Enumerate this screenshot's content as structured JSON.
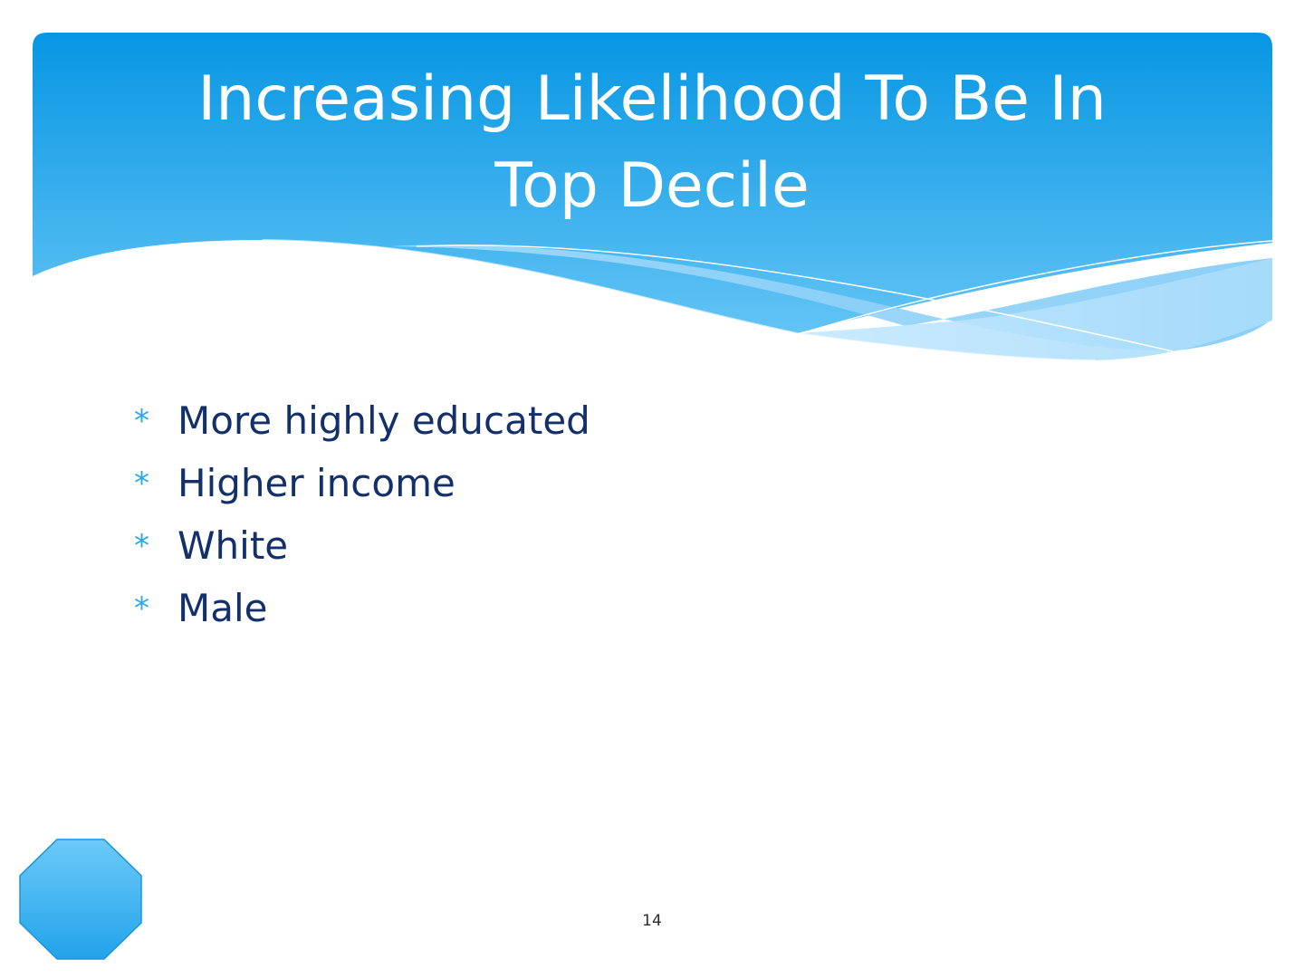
{
  "slide": {
    "title_lines": [
      "Increasing Likelihood To Be In",
      "Top Decile"
    ],
    "bullet_icon": "*",
    "bullets": [
      "More highly educated",
      "Higher income",
      "White",
      "Male"
    ],
    "page_number": "14"
  },
  "colors": {
    "header_top": "#0796e3",
    "header_bottom": "#63c4f5",
    "bullet_icon": "#29a8ea",
    "bullet_text": "#13306b",
    "octagon_top": "#6ccaf8",
    "octagon_bottom": "#22a3ea"
  },
  "icons": {
    "bullet": "asterisk-icon",
    "corner_shape": "octagon-shape"
  }
}
